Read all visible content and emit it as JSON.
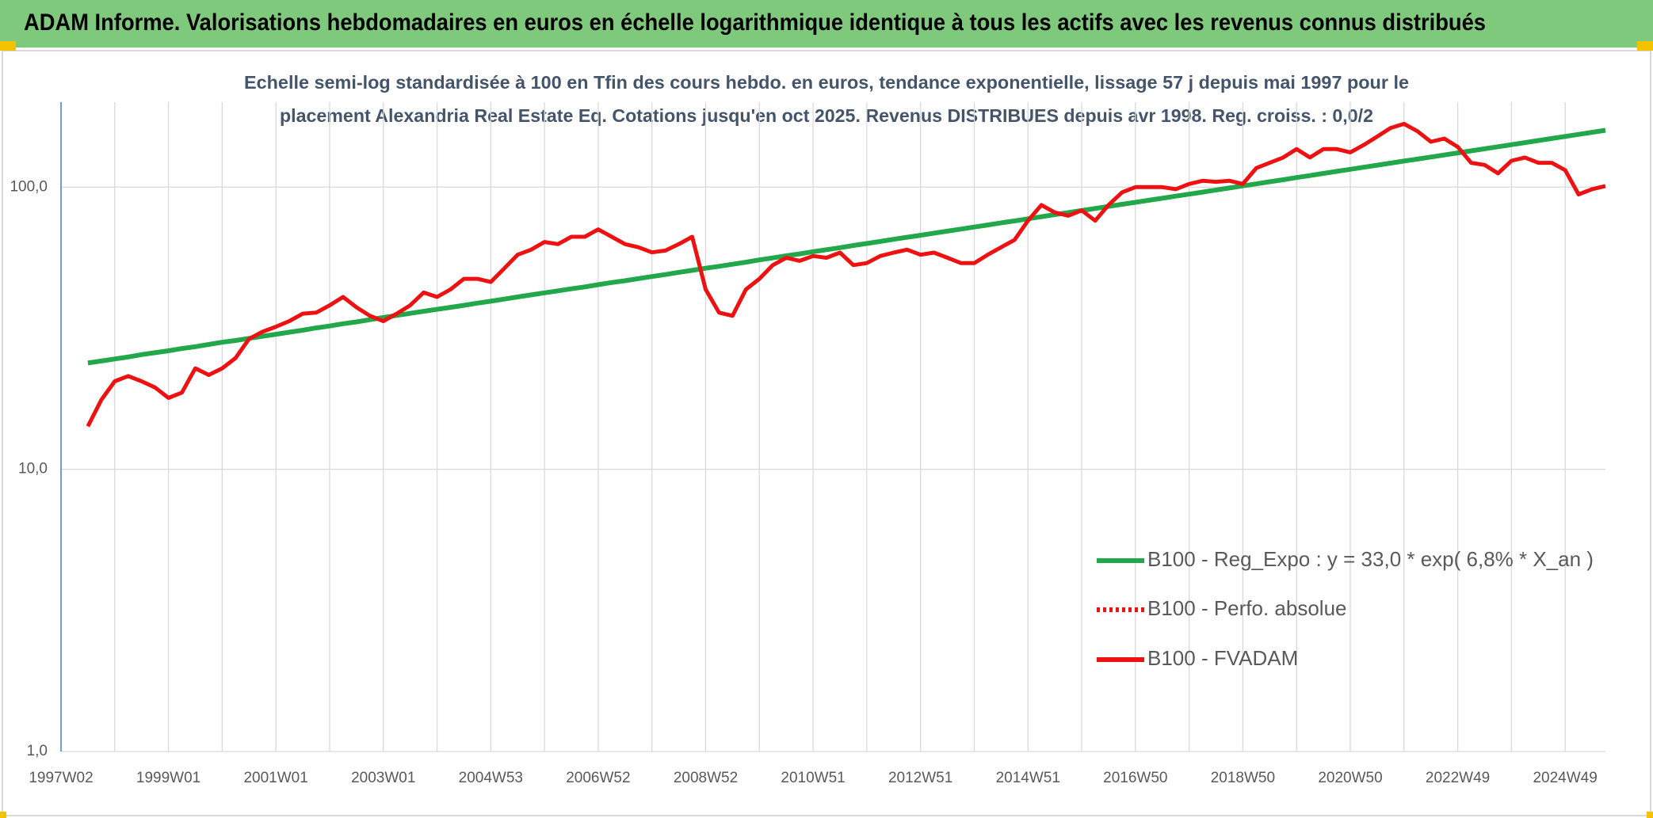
{
  "page_title": "ADAM Informe. Valorisations hebdomadaires en euros en échelle logarithmique identique à tous les actifs avec les revenus connus distribués",
  "chart_data": {
    "type": "line",
    "title": [
      "Echelle semi-log standardisée à 100 en Tfin des cours hebdo. en euros, tendance exponentielle, lissage 57 j depuis mai 1997 pour le",
      "placement Alexandria Real Estate Eq. Cotations jusqu'en oct 2025. Revenus DISTRIBUES depuis avr 1998. Reg. croiss. : 0,0/2"
    ],
    "log_scale": true,
    "grid": true,
    "legend": "lower right",
    "ylim": [
      1,
      200
    ],
    "yticks": [
      {
        "value": 1,
        "label": "1,0"
      },
      {
        "value": 10,
        "label": "10,0"
      },
      {
        "value": 100,
        "label": "100,0"
      }
    ],
    "categories": [
      "1997W02",
      null,
      null,
      null,
      null,
      null,
      null,
      null,
      "1999W01",
      null,
      null,
      null,
      null,
      null,
      null,
      null,
      "2001W01",
      null,
      null,
      null,
      null,
      null,
      null,
      null,
      "2003W01",
      null,
      null,
      null,
      null,
      null,
      null,
      null,
      "2004W53",
      null,
      null,
      null,
      null,
      null,
      null,
      null,
      "2006W52",
      null,
      null,
      null,
      null,
      null,
      null,
      null,
      "2008W52",
      null,
      null,
      null,
      null,
      null,
      null,
      null,
      "2010W51",
      null,
      null,
      null,
      null,
      null,
      null,
      null,
      "2012W51",
      null,
      null,
      null,
      null,
      null,
      null,
      null,
      "2014W51",
      null,
      null,
      null,
      null,
      null,
      null,
      null,
      "2016W50",
      null,
      null,
      null,
      null,
      null,
      null,
      null,
      "2018W50",
      null,
      null,
      null,
      null,
      null,
      null,
      null,
      "2020W50",
      null,
      null,
      null,
      null,
      null,
      null,
      null,
      "2022W49",
      null,
      null,
      null,
      null,
      null,
      null,
      null,
      "2024W49",
      null,
      null,
      null
    ],
    "series": [
      {
        "name": "B100 - Reg_Expo : y = 33,0 * exp( 6,8% *  X_an )",
        "color": "#22a84a",
        "dash": false,
        "values": [
          null,
          null,
          23.8,
          24.2,
          24.6,
          25.0,
          25.5,
          25.9,
          26.3,
          26.8,
          27.2,
          27.7,
          28.2,
          28.6,
          29.1,
          29.6,
          30.1,
          30.6,
          31.1,
          31.7,
          32.2,
          32.8,
          33.3,
          33.9,
          34.5,
          35.1,
          35.7,
          36.3,
          36.9,
          37.5,
          38.1,
          38.8,
          39.4,
          40.1,
          40.8,
          41.5,
          42.2,
          42.9,
          43.6,
          44.3,
          45.1,
          45.9,
          46.6,
          47.4,
          48.2,
          49.0,
          49.9,
          50.7,
          51.6,
          52.4,
          53.3,
          54.2,
          55.2,
          56.1,
          57.1,
          58.0,
          59.0,
          60.0,
          61.0,
          62.1,
          63.1,
          64.2,
          65.3,
          66.4,
          67.5,
          68.7,
          69.8,
          71.0,
          72.2,
          73.4,
          74.7,
          75.9,
          77.2,
          78.5,
          79.9,
          81.2,
          82.6,
          84.0,
          85.4,
          86.9,
          88.3,
          89.8,
          91.3,
          92.9,
          94.4,
          96.0,
          97.7,
          99.3,
          101.0,
          102.7,
          104.5,
          106.2,
          108.1,
          109.9,
          111.8,
          113.7,
          115.6,
          117.6,
          119.6,
          121.6,
          123.7,
          125.7,
          127.8,
          130.0,
          132.2,
          134.4,
          136.7,
          139.0,
          141.4,
          143.8,
          146.2,
          148.7,
          151.2,
          153.8,
          156.4,
          159.0
        ]
      },
      {
        "name": "B100 - Perfo. absolue",
        "color": "#ee1111",
        "dash": true,
        "values": [
          null,
          null,
          null,
          null,
          null,
          null,
          null,
          null,
          null,
          null,
          null,
          null,
          null,
          null,
          null,
          null,
          null,
          null,
          null,
          null,
          null,
          null,
          null,
          null,
          null,
          null,
          null,
          null,
          null,
          null,
          null,
          null,
          null,
          null,
          null,
          null,
          null,
          null,
          null,
          null,
          null,
          null,
          null,
          null,
          null,
          null,
          null,
          null,
          null,
          null,
          null,
          null,
          null,
          null,
          null,
          null,
          null,
          null,
          null,
          null,
          null,
          null,
          null,
          null,
          null,
          null,
          null,
          null,
          null,
          null,
          null,
          null,
          null,
          null,
          null,
          null,
          null,
          null,
          null,
          null,
          null,
          null,
          null,
          null,
          null,
          null,
          null,
          null,
          null,
          null,
          null,
          null,
          null,
          null,
          null,
          null,
          null,
          null,
          null,
          null,
          null,
          null,
          null,
          null,
          null,
          null,
          null,
          null,
          null,
          null,
          null,
          null,
          null,
          null,
          null,
          null
        ]
      },
      {
        "name": "B100 - FVADAM",
        "color": "#ee1111",
        "dash": false,
        "values": [
          null,
          null,
          14.2,
          17.6,
          20.5,
          21.4,
          20.5,
          19.5,
          17.9,
          18.7,
          22.8,
          21.6,
          22.8,
          24.8,
          29,
          30.7,
          32,
          33.5,
          35.6,
          35.9,
          38.1,
          40.8,
          37.5,
          35,
          33.5,
          35.6,
          38.1,
          42.3,
          40.8,
          43.4,
          47.3,
          47.3,
          46.1,
          51.5,
          57.6,
          60,
          63.9,
          62.8,
          66.7,
          66.7,
          70.8,
          66.7,
          62.8,
          61.2,
          58.7,
          59.6,
          62.8,
          66.7,
          43.4,
          35.9,
          35,
          43.4,
          47.3,
          52.9,
          56.2,
          54.8,
          57,
          56.2,
          58.6,
          52.9,
          53.8,
          57,
          58.6,
          60,
          57.6,
          58.6,
          56.2,
          53.8,
          53.8,
          57.6,
          61.2,
          65,
          76,
          86.4,
          81.3,
          79.2,
          82.7,
          76,
          86.4,
          95.8,
          100,
          100,
          100,
          98.3,
          102.6,
          105.3,
          104.4,
          105.3,
          102.6,
          116.8,
          121.9,
          127.3,
          136.3,
          127.3,
          136.3,
          136.3,
          132.8,
          141,
          151,
          162,
          167.6,
          157.8,
          144.8,
          148.6,
          138.8,
          121.9,
          119.8,
          111.9,
          124,
          127.3,
          121.9,
          121.9,
          114.8,
          94.2,
          98.3,
          100.9
        ]
      }
    ]
  }
}
